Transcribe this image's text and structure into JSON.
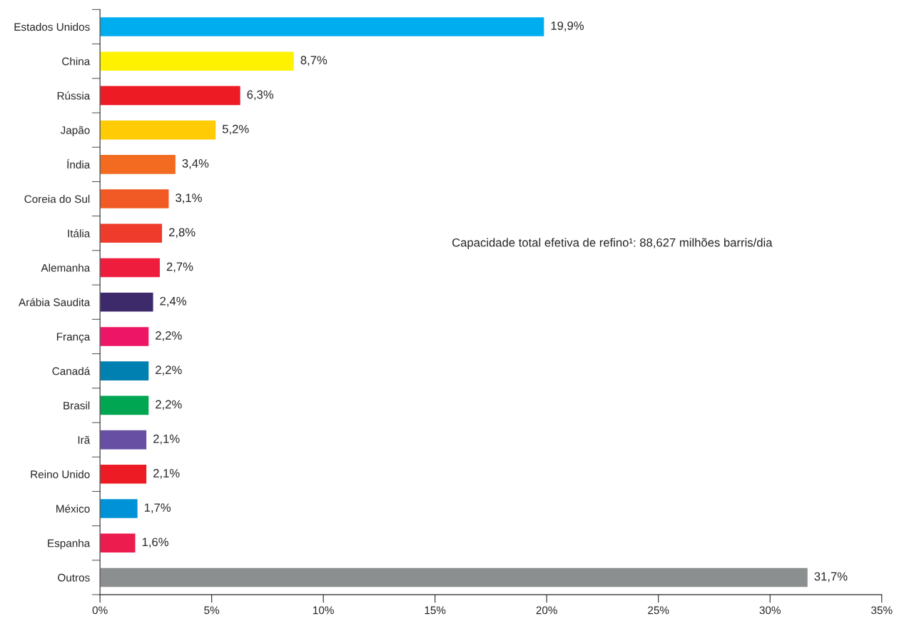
{
  "chart_data": {
    "type": "bar",
    "orientation": "horizontal",
    "categories": [
      "Estados Unidos",
      "China",
      "Rússia",
      "Japão",
      "Índia",
      "Coreia do Sul",
      "Itália",
      "Alemanha",
      "Arábia Saudita",
      "França",
      "Canadá",
      "Brasil",
      "Irã",
      "Reino Unido",
      "México",
      "Espanha",
      "Outros"
    ],
    "values": [
      19.9,
      8.7,
      6.3,
      5.2,
      3.4,
      3.1,
      2.8,
      2.7,
      2.4,
      2.2,
      2.2,
      2.2,
      2.1,
      2.1,
      1.7,
      1.6,
      31.7
    ],
    "value_labels": [
      "19,9%",
      "8,7%",
      "6,3%",
      "5,2%",
      "3,4%",
      "3,1%",
      "2,8%",
      "2,7%",
      "2,4%",
      "2,2%",
      "2,2%",
      "2,2%",
      "2,1%",
      "2,1%",
      "1,7%",
      "1,6%",
      "31,7%"
    ],
    "colors": [
      "#00aeef",
      "#fff200",
      "#ed1c24",
      "#ffcb05",
      "#f26b21",
      "#f15a24",
      "#ef3b2c",
      "#ee1d3e",
      "#3c2a6b",
      "#ed1566",
      "#0080b0",
      "#00a651",
      "#6750a4",
      "#ed1c24",
      "#0092d6",
      "#ed1c4f",
      "#8c8f8f"
    ],
    "xlim": [
      0,
      35
    ],
    "xticks": [
      {
        "value": 0,
        "label": "0%"
      },
      {
        "value": 5,
        "label": "5%"
      },
      {
        "value": 10,
        "label": "10%"
      },
      {
        "value": 15,
        "label": "15%"
      },
      {
        "value": 20,
        "label": "20%"
      },
      {
        "value": 25,
        "label": "25%"
      },
      {
        "value": 30,
        "label": "30%"
      },
      {
        "value": 35,
        "label": "35%"
      }
    ],
    "annotations": [
      "Capacidade total efetiva de refino¹: 88,627 milhões barris/dia"
    ],
    "grid": false,
    "legend": false
  }
}
